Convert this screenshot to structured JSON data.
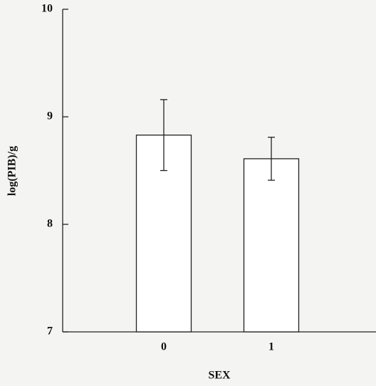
{
  "chart_data": {
    "type": "bar",
    "x_label": "SEX",
    "y_label": "log(PIB)/g",
    "categories": [
      "0",
      "1"
    ],
    "values": [
      8.83,
      8.61
    ],
    "errors": [
      0.33,
      0.2
    ],
    "color": "#ffffff",
    "edgecolor": "#222222",
    "ylim": [
      7,
      10
    ],
    "yticks": [
      7,
      8,
      9,
      10
    ],
    "grid": false
  }
}
